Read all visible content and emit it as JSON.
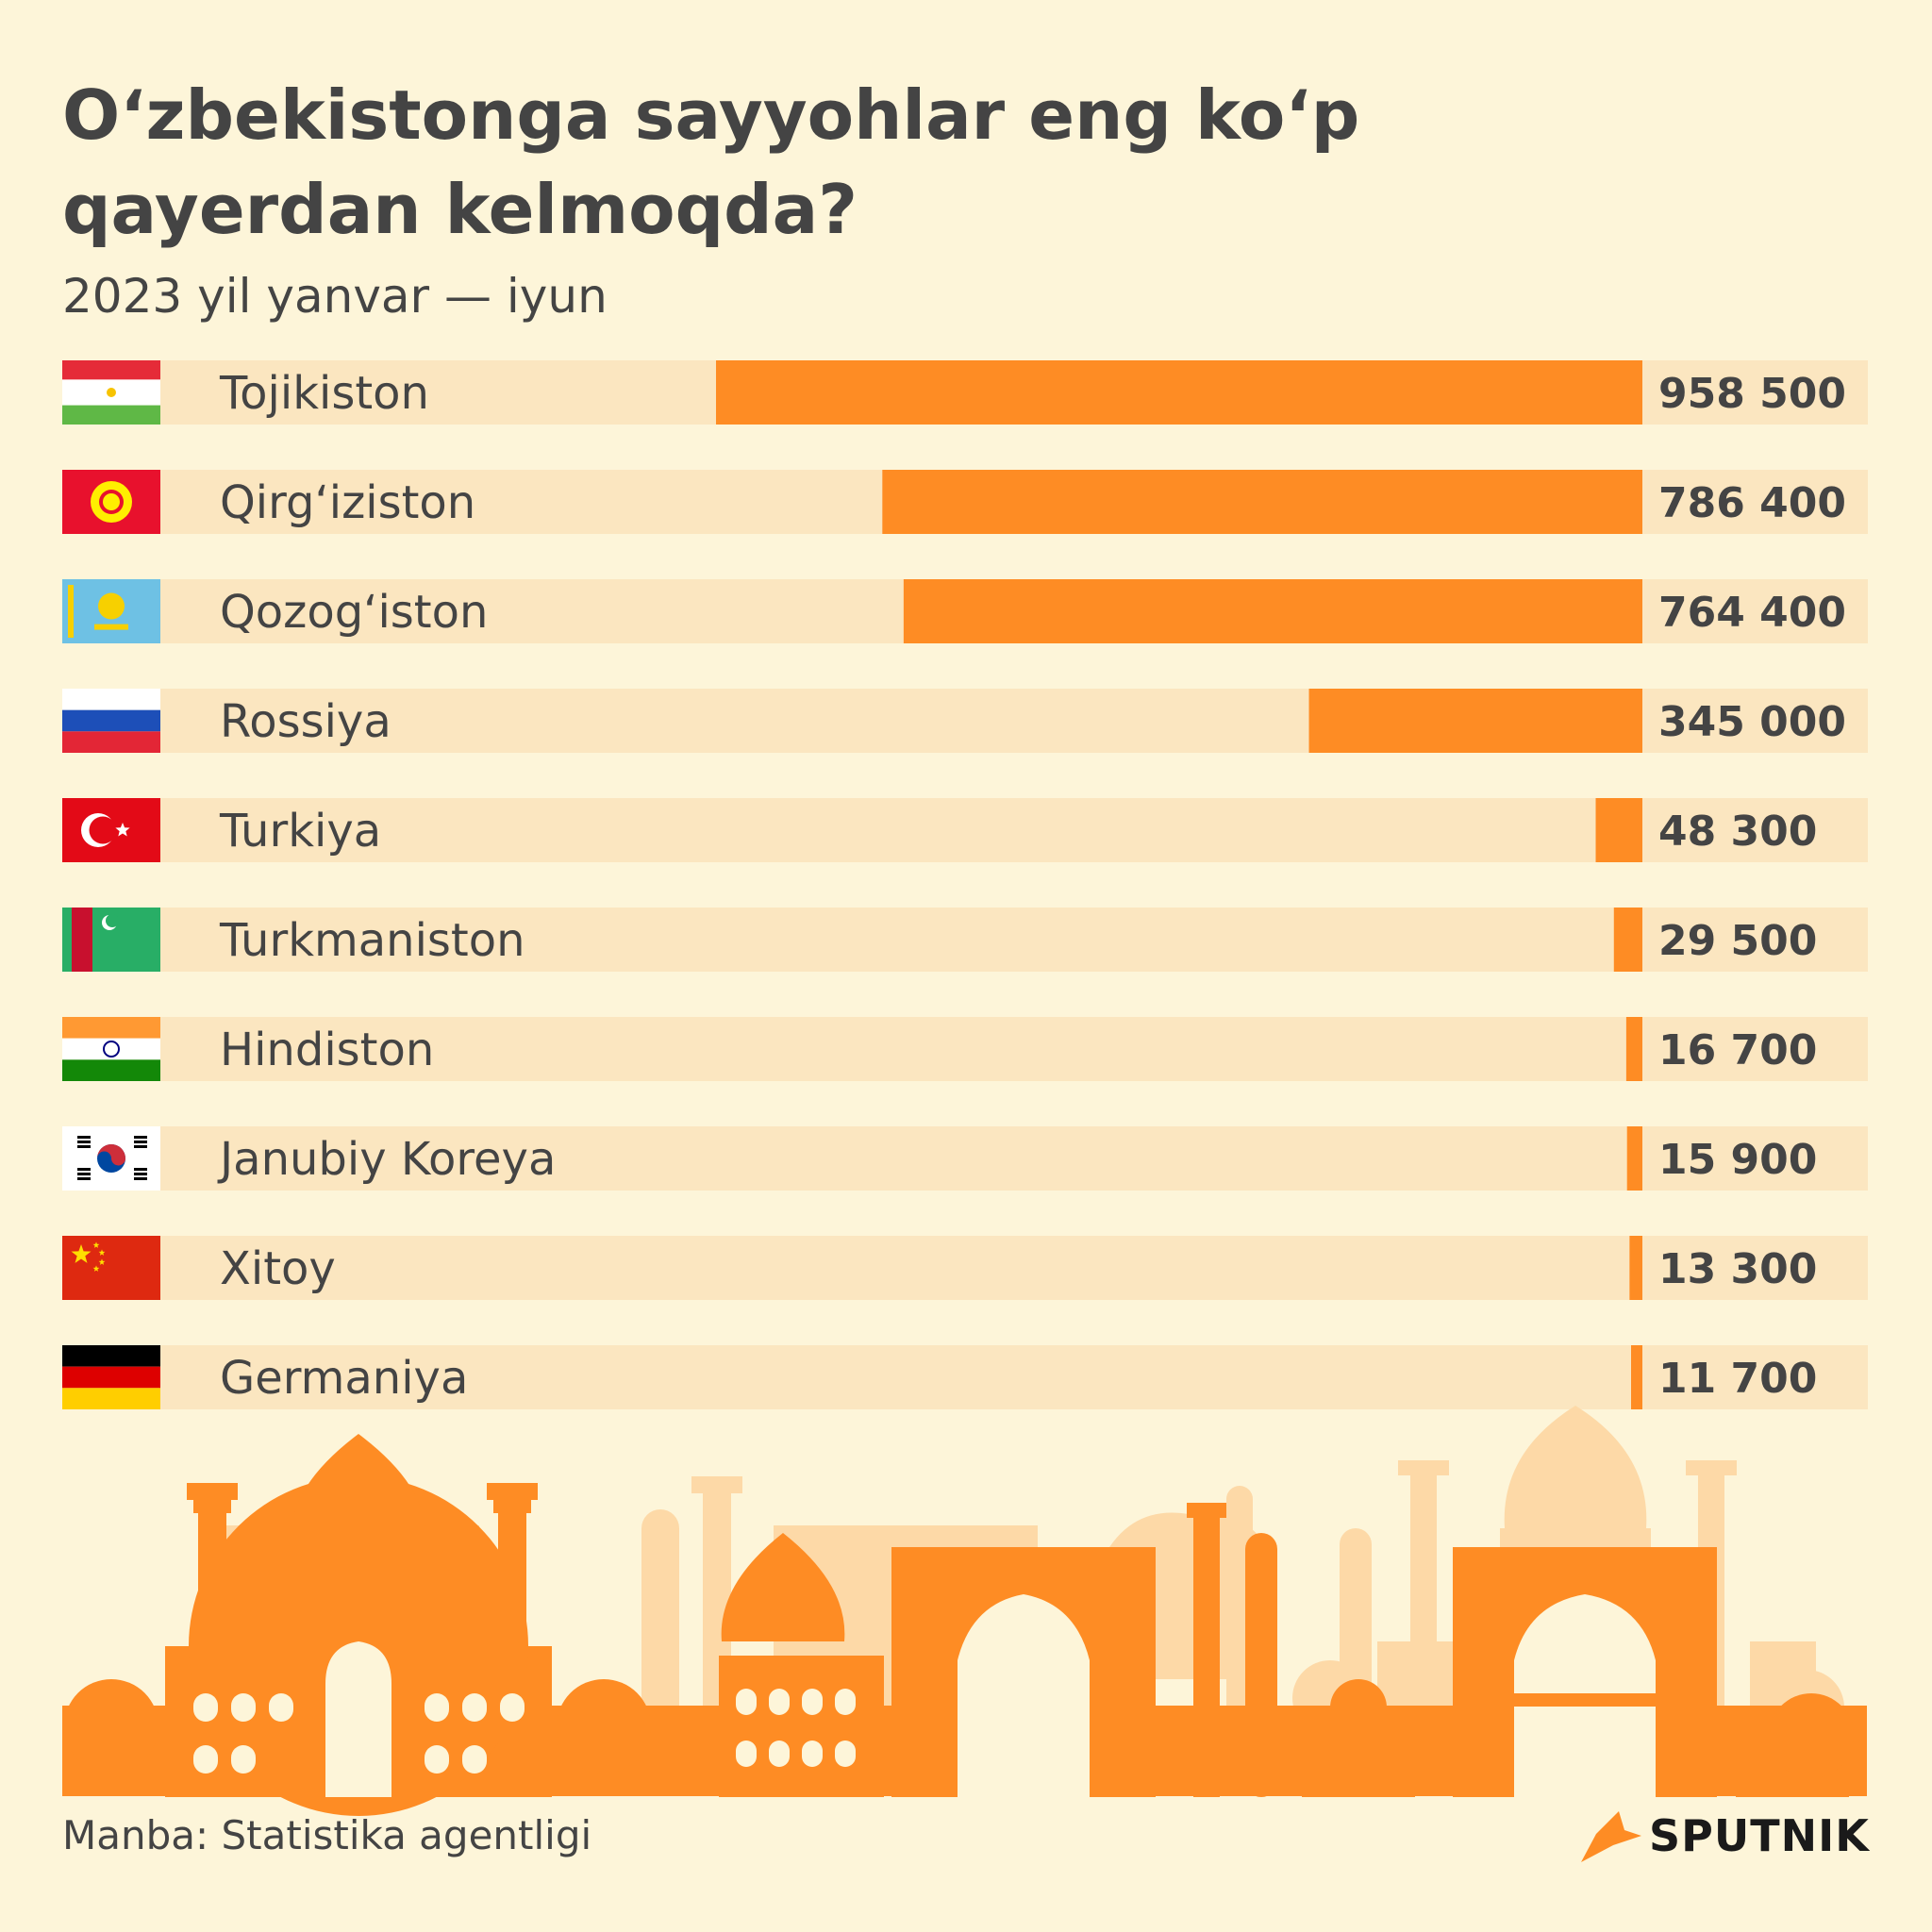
{
  "title": "O‘zbekistonga sayyohlar eng ko‘p qayerdan kelmoqda?",
  "subtitle": "2023 yil yanvar — iyun",
  "source": "Manba: Statistika agentligi",
  "brand": "SPUTNIK",
  "colors": {
    "background": "#fdf5d9",
    "track": "#fbe6c0",
    "bar": "#fe8c24",
    "text": "#444444",
    "skyline_front": "#fe8c24",
    "skyline_back": "#fdd9a7"
  },
  "chart_data": {
    "type": "bar",
    "orientation": "horizontal",
    "categories": [
      "Tojikiston",
      "Qirg‘iziston",
      "Qozog‘iston",
      "Rossiya",
      "Turkiya",
      "Turkmaniston",
      "Hindiston",
      "Janubiy Koreya",
      "Xitoy",
      "Germaniya"
    ],
    "values": [
      958500,
      786400,
      764400,
      345000,
      48300,
      29500,
      16700,
      15900,
      13300,
      11700
    ],
    "value_labels": [
      "958 500",
      "786 400",
      "764 400",
      "345 000",
      "48 300",
      "29 500",
      "16 700",
      "15 900",
      "13 300",
      "11 700"
    ],
    "flag_icons": [
      "tajikistan-flag-icon",
      "kyrgyzstan-flag-icon",
      "kazakhstan-flag-icon",
      "russia-flag-icon",
      "turkey-flag-icon",
      "turkmenistan-flag-icon",
      "india-flag-icon",
      "south-korea-flag-icon",
      "china-flag-icon",
      "germany-flag-icon"
    ],
    "xlim": [
      0,
      958500
    ],
    "grid": false,
    "legend": "none"
  }
}
